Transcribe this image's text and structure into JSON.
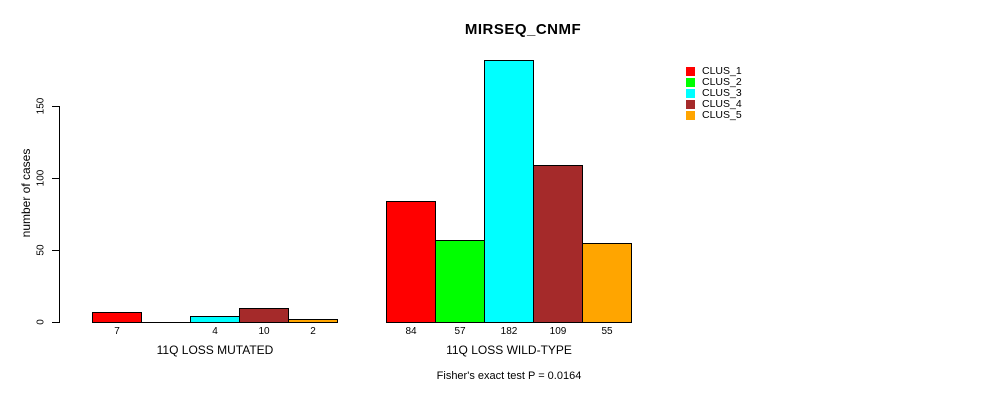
{
  "figure": {
    "title": "MIRSEQ_CNMF",
    "footnote": "Fisher's exact test P = 0.0164"
  },
  "chart_data": {
    "type": "bar",
    "title": "MIRSEQ_CNMF",
    "ylabel": "number of cases",
    "xlabel": "",
    "ylim": [
      0,
      185
    ],
    "yticks": [
      0,
      50,
      100,
      150
    ],
    "grid": false,
    "legend_position": "right",
    "categories": [
      "11Q LOSS MUTATED",
      "11Q LOSS WILD-TYPE"
    ],
    "series": [
      {
        "name": "CLUS_1",
        "color": "#ff0000",
        "values": [
          7,
          84
        ]
      },
      {
        "name": "CLUS_2",
        "color": "#00ff00",
        "values": [
          0,
          57
        ]
      },
      {
        "name": "CLUS_3",
        "color": "#00ffff",
        "values": [
          4,
          182
        ]
      },
      {
        "name": "CLUS_4",
        "color": "#a52a2a",
        "values": [
          10,
          109
        ]
      },
      {
        "name": "CLUS_5",
        "color": "#ffa500",
        "values": [
          2,
          55
        ]
      }
    ],
    "bar_labels": [
      [
        "7",
        "",
        "4",
        "10",
        "2"
      ],
      [
        "84",
        "57",
        "182",
        "109",
        "55"
      ]
    ],
    "footnote": "Fisher's exact test P = 0.0164"
  }
}
